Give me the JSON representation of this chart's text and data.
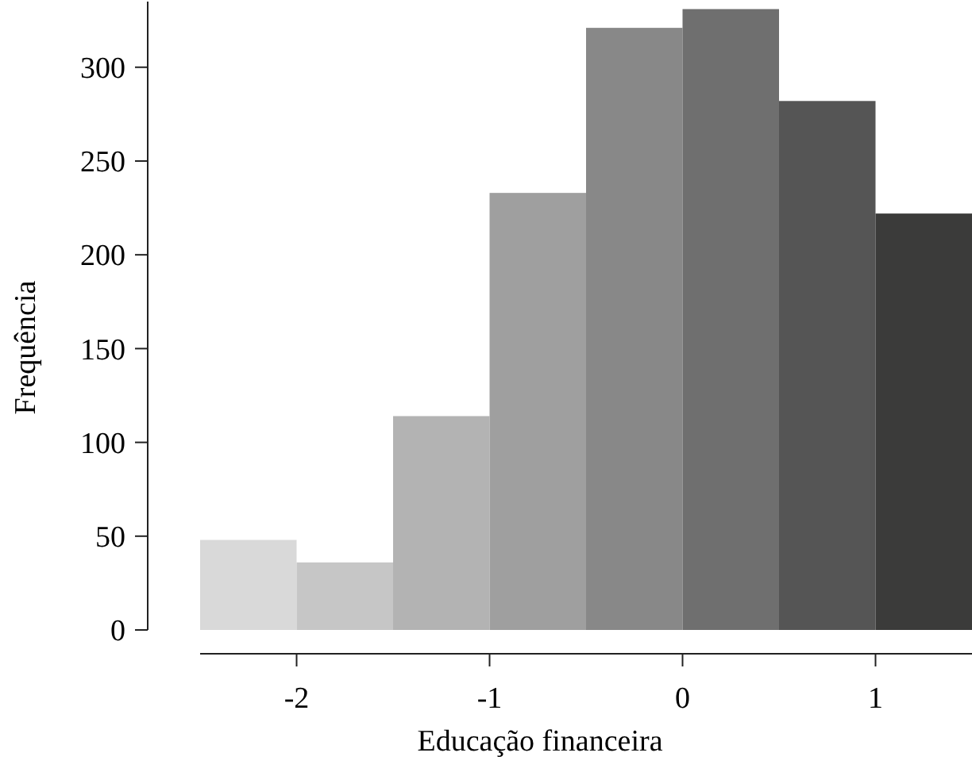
{
  "chart_data": {
    "type": "histogram",
    "xlabel": "Educação financeira",
    "ylabel": "Frequência",
    "bins": [
      -2.5,
      -2,
      -1.5,
      -1,
      -0.5,
      0,
      0.5,
      1,
      1.5
    ],
    "values": [
      48,
      36,
      114,
      233,
      321,
      331,
      282,
      222
    ],
    "colors": [
      "#d9d9d9",
      "#c6c6c6",
      "#b3b3b3",
      "#9f9f9f",
      "#888888",
      "#6f6f6f",
      "#555555",
      "#3b3b3a"
    ],
    "xlim": [
      -2.5,
      1.5
    ],
    "xticks": [
      -2,
      -1,
      0,
      1
    ],
    "ylim": [
      0,
      335
    ],
    "yticks": [
      0,
      50,
      100,
      150,
      200,
      250,
      300
    ],
    "grid": false
  }
}
